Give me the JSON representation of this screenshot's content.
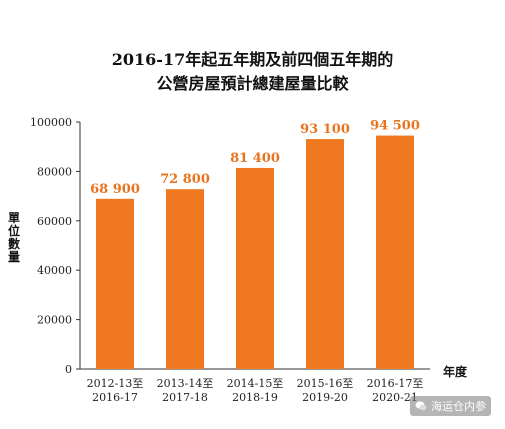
{
  "chart_data": {
    "type": "bar",
    "title_line1": "2016-17年起五年期及前四個五年期的",
    "title_line2": "公營房屋預計總建屋量比較",
    "ylabel": "單位數量",
    "xlabel": "年度",
    "categories": [
      [
        "2012-13至",
        "2016-17"
      ],
      [
        "2013-14至",
        "2017-18"
      ],
      [
        "2014-15至",
        "2018-19"
      ],
      [
        "2015-16至",
        "2019-20"
      ],
      [
        "2016-17至",
        "2020-21"
      ]
    ],
    "values": [
      68900,
      72800,
      81400,
      93100,
      94500
    ],
    "value_labels": [
      "68 900",
      "72 800",
      "81 400",
      "93 100",
      "94 500"
    ],
    "yticks": [
      0,
      20000,
      40000,
      60000,
      80000,
      100000
    ],
    "ylim": [
      0,
      100000
    ],
    "bar_color": "#F07820",
    "label_color": "#E8731E"
  },
  "watermark": "海运仓内参"
}
